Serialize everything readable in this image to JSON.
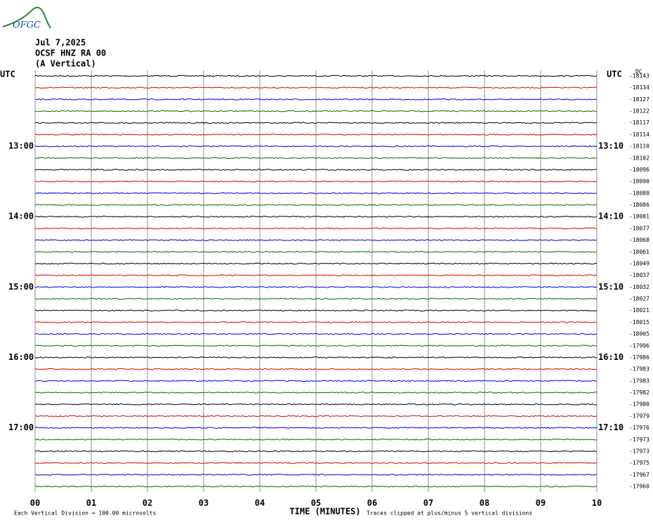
{
  "header": {
    "logo": "OFGC",
    "date": "Jul 7,2025",
    "station": "OCSF HNZ RA 00",
    "component": "(A Vertical)",
    "dc": "DC"
  },
  "left_axis_label": "UTC",
  "right_axis_label": "UTC",
  "trace_colors": [
    "#000000",
    "#e00000",
    "#0000e0",
    "#007000"
  ],
  "rows": [
    {
      "offset": "-18143"
    },
    {
      "offset": "-18134"
    },
    {
      "offset": "-18127"
    },
    {
      "offset": "-18122"
    },
    {
      "offset": "-18117"
    },
    {
      "offset": "-18114"
    },
    {
      "offset": "-18110",
      "left": "13:00",
      "right": "13:10"
    },
    {
      "offset": "-18102"
    },
    {
      "offset": "-18096"
    },
    {
      "offset": "-18090"
    },
    {
      "offset": "-18088"
    },
    {
      "offset": "-18086"
    },
    {
      "offset": "-18081",
      "left": "14:00",
      "right": "14:10"
    },
    {
      "offset": "-18077"
    },
    {
      "offset": "-18068"
    },
    {
      "offset": "-18061"
    },
    {
      "offset": "-18049"
    },
    {
      "offset": "-18037"
    },
    {
      "offset": "-18032",
      "left": "15:00",
      "right": "15:10"
    },
    {
      "offset": "-18027"
    },
    {
      "offset": "-18021"
    },
    {
      "offset": "-18015"
    },
    {
      "offset": "-18005"
    },
    {
      "offset": "-17996"
    },
    {
      "offset": "-17986",
      "left": "16:00",
      "right": "16:10"
    },
    {
      "offset": "-17983"
    },
    {
      "offset": "-17983"
    },
    {
      "offset": "-17982"
    },
    {
      "offset": "-17980"
    },
    {
      "offset": "-17979"
    },
    {
      "offset": "-17976",
      "left": "17:00",
      "right": "17:10"
    },
    {
      "offset": "-17973"
    },
    {
      "offset": "-17973"
    },
    {
      "offset": "-17975"
    },
    {
      "offset": "-17967"
    },
    {
      "offset": "-17960"
    }
  ],
  "x_axis": {
    "ticks": [
      "00",
      "01",
      "02",
      "03",
      "04",
      "05",
      "06",
      "07",
      "08",
      "09",
      "10"
    ],
    "title": "TIME (MINUTES)"
  },
  "footer": {
    "scale": "Each Vertical Division =  100.00 microvolts",
    "clip_note": "Traces clipped at plus/minus 5 vertical divisions"
  }
}
